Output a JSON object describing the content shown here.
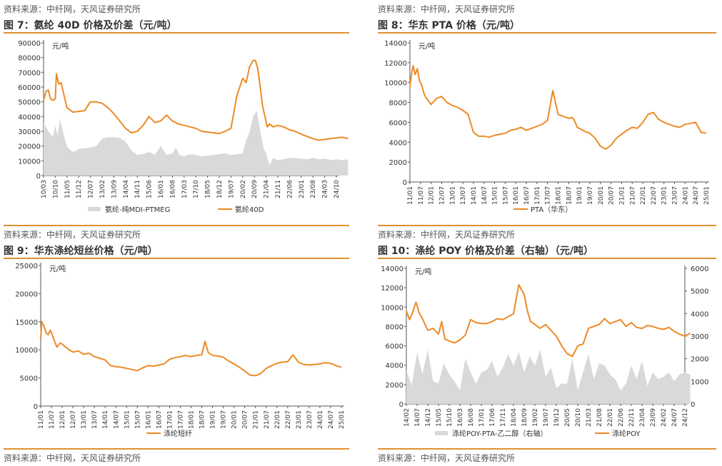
{
  "colors": {
    "accent": "#E0912F",
    "orange": "#ED8A27",
    "gray": "#D9D9D9"
  },
  "source_text": "资料来源：中纤网，天风证券研究所",
  "panels": [
    {
      "title": "图 7：氨纶 40D 价格及价差（元/吨）"
    },
    {
      "title": "图 8：华东 PTA 价格（元/吨）"
    },
    {
      "title": "图 9：华东涤纶短丝价格（元/吨）"
    },
    {
      "title": "图 10：涤纶 POY 价格及价差（右轴）（元/吨）"
    }
  ],
  "chart_data": [
    {
      "type": "line",
      "unit_label": "元/吨",
      "ylim": [
        0,
        90000
      ],
      "yticks": [
        0,
        10000,
        20000,
        30000,
        40000,
        50000,
        60000,
        70000,
        80000,
        90000
      ],
      "xticks": [
        "10/03",
        "10/10",
        "11/05",
        "11/12",
        "12/07",
        "13/02",
        "13/09",
        "14/04",
        "14/11",
        "15/06",
        "16/01",
        "16/08",
        "17/03",
        "17/10",
        "18/05",
        "18/12",
        "19/07",
        "20/02",
        "20/09",
        "21/04",
        "21/11",
        "22/06",
        "23/01",
        "23/08",
        "24/03",
        "24/10"
      ],
      "series": [
        {
          "name": "氨纶-纯MDI-PTMEG",
          "kind": "area",
          "color": "#D9D9D9",
          "x": [
            0,
            0.4,
            0.8,
            1,
            1.2,
            1.4,
            1.7,
            2,
            2.3,
            2.6,
            3,
            3.5,
            4,
            4.5,
            5,
            5.5,
            6,
            6.5,
            7,
            7.5,
            8,
            8.5,
            9,
            9.5,
            10,
            10.5,
            11,
            11.3,
            11.6,
            12,
            12.5,
            13,
            13.5,
            14,
            14.5,
            15,
            15.5,
            16,
            16.5,
            17,
            17.3,
            17.6,
            17.9,
            18.2,
            18.5,
            18.8,
            19,
            19.3,
            19.6,
            20,
            20.5,
            21,
            21.5,
            22,
            22.5,
            23,
            23.5,
            24,
            24.5,
            25,
            25.5,
            26
          ],
          "y": [
            36000,
            30000,
            26000,
            34000,
            27000,
            38000,
            28000,
            20000,
            17000,
            16000,
            18000,
            18500,
            19000,
            20000,
            25000,
            26000,
            26000,
            25500,
            23000,
            17000,
            14000,
            14500,
            16000,
            14000,
            20000,
            14000,
            15000,
            19000,
            14000,
            13000,
            14500,
            14000,
            13000,
            13500,
            14000,
            14500,
            15000,
            14000,
            14500,
            15000,
            24000,
            30000,
            40000,
            44000,
            30000,
            18000,
            15000,
            7000,
            12000,
            10500,
            11000,
            12000,
            12000,
            11500,
            11000,
            12000,
            11000,
            11500,
            10500,
            11000,
            10500,
            11000
          ]
        },
        {
          "name": "氨纶40D",
          "kind": "line",
          "color": "#ED8A27",
          "x": [
            0,
            0.2,
            0.4,
            0.6,
            0.8,
            1,
            1.1,
            1.3,
            1.5,
            1.7,
            2,
            2.5,
            3,
            3.5,
            4,
            4.5,
            5,
            5.5,
            6,
            6.5,
            7,
            7.5,
            8,
            8.5,
            9,
            9.5,
            10,
            10.5,
            11,
            11.5,
            12,
            12.5,
            13,
            13.5,
            14,
            14.5,
            15,
            15.5,
            16,
            16.5,
            17,
            17.3,
            17.6,
            17.9,
            18.1,
            18.3,
            18.5,
            18.7,
            18.9,
            19.1,
            19.3,
            19.6,
            20,
            20.5,
            21,
            21.5,
            22,
            22.5,
            23,
            23.5,
            24,
            24.5,
            25,
            25.5,
            26
          ],
          "y": [
            51000,
            57000,
            58000,
            52000,
            51000,
            52000,
            69000,
            62000,
            63000,
            56000,
            46000,
            43000,
            43500,
            44000,
            50000,
            50000,
            49000,
            46000,
            42000,
            37000,
            32000,
            29000,
            30000,
            34000,
            40000,
            36000,
            37000,
            41000,
            37000,
            35000,
            34000,
            33000,
            32000,
            30000,
            29500,
            29000,
            28500,
            30000,
            32000,
            54000,
            66000,
            63000,
            74000,
            78000,
            78000,
            72000,
            60000,
            47000,
            40000,
            33000,
            35000,
            33000,
            34000,
            33000,
            31000,
            30000,
            28000,
            26500,
            25000,
            24000,
            24500,
            25000,
            25500,
            26000,
            25000
          ]
        }
      ]
    },
    {
      "type": "line",
      "unit_label": "元/吨",
      "ylim": [
        0,
        14000
      ],
      "yticks": [
        0,
        2000,
        4000,
        6000,
        8000,
        10000,
        12000,
        14000
      ],
      "xticks": [
        "11/01",
        "11/07",
        "12/01",
        "12/07",
        "13/01",
        "13/07",
        "14/01",
        "14/07",
        "15/01",
        "15/07",
        "16/01",
        "16/07",
        "17/01",
        "17/07",
        "18/01",
        "18/07",
        "19/01",
        "19/07",
        "20/01",
        "20/07",
        "21/01",
        "21/07",
        "22/01",
        "22/07",
        "23/01",
        "23/07",
        "24/01",
        "24/07",
        "25/01"
      ],
      "series": [
        {
          "name": "PTA（华东）",
          "kind": "line",
          "color": "#ED8A27",
          "x": [
            0,
            0.1,
            0.3,
            0.5,
            0.7,
            0.9,
            1.1,
            1.3,
            1.5,
            1.7,
            2,
            2.5,
            3,
            3.5,
            4,
            4.5,
            5,
            5.5,
            6,
            6.5,
            7,
            7.5,
            8,
            8.5,
            9,
            9.5,
            10,
            10.5,
            11,
            11.5,
            12,
            12.5,
            13,
            13.5,
            14,
            14.5,
            15,
            15.3,
            15.5,
            15.8,
            16,
            16.5,
            17,
            17.5,
            18,
            18.5,
            19,
            19.5,
            20,
            20.5,
            21,
            21.5,
            22,
            22.5,
            23,
            23.5,
            24,
            24.5,
            25,
            25.5,
            26,
            26.5,
            27,
            27.5,
            28
          ],
          "y": [
            9500,
            10500,
            11700,
            10800,
            11400,
            10200,
            9800,
            9000,
            8500,
            8200,
            7800,
            8400,
            8600,
            8000,
            7700,
            7500,
            7200,
            6800,
            5000,
            4600,
            4600,
            4500,
            4700,
            4800,
            4900,
            5200,
            5300,
            5500,
            5200,
            5400,
            5600,
            5800,
            6200,
            9200,
            6800,
            6600,
            6400,
            6500,
            6300,
            5500,
            5400,
            5100,
            4900,
            4400,
            3600,
            3300,
            3700,
            4400,
            4800,
            5200,
            5500,
            5400,
            6000,
            6800,
            7000,
            6300,
            6000,
            5800,
            5600,
            5500,
            5800,
            5900,
            6000,
            5000,
            4900
          ]
        }
      ]
    },
    {
      "type": "line",
      "unit_label": "元/吨",
      "ylim": [
        0,
        25000
      ],
      "yticks": [
        0,
        5000,
        10000,
        15000,
        20000,
        25000
      ],
      "xticks": [
        "11/01",
        "11/07",
        "12/01",
        "12/07",
        "13/01",
        "13/07",
        "14/01",
        "14/07",
        "15/01",
        "15/07",
        "16/01",
        "16/07",
        "17/01",
        "17/07",
        "18/01",
        "18/07",
        "19/01",
        "19/07",
        "20/01",
        "20/07",
        "21/01",
        "21/07",
        "22/01",
        "22/07",
        "23/01",
        "23/07",
        "24/01",
        "24/07",
        "25/01"
      ],
      "series": [
        {
          "name": "涤纶短纤",
          "kind": "line",
          "color": "#ED8A27",
          "x": [
            0,
            0.1,
            0.3,
            0.5,
            0.7,
            0.9,
            1.2,
            1.5,
            1.8,
            2,
            2.5,
            3,
            3.5,
            4,
            4.5,
            5,
            5.5,
            6,
            6.5,
            7,
            7.5,
            8,
            8.5,
            9,
            9.5,
            10,
            10.5,
            11,
            11.5,
            12,
            12.5,
            13,
            13.5,
            14,
            14.5,
            15,
            15.3,
            15.6,
            16,
            16.5,
            17,
            17.5,
            18,
            18.5,
            19,
            19.5,
            20,
            20.5,
            21,
            21.5,
            22,
            22.5,
            23,
            23.5,
            24,
            24.5,
            25,
            25.5,
            26,
            26.5,
            27,
            27.5,
            28
          ],
          "y": [
            12000,
            15000,
            14200,
            13000,
            12700,
            13500,
            12000,
            10500,
            11200,
            11000,
            10200,
            9600,
            9800,
            9200,
            9400,
            8800,
            8500,
            8200,
            7200,
            7000,
            6900,
            6700,
            6500,
            6300,
            6800,
            7200,
            7100,
            7300,
            7500,
            8300,
            8600,
            8800,
            9000,
            8800,
            9000,
            9100,
            11500,
            9500,
            9000,
            8900,
            8700,
            8000,
            7500,
            6900,
            6200,
            5500,
            5400,
            5800,
            6700,
            7200,
            7600,
            7800,
            7900,
            9100,
            7800,
            7400,
            7300,
            7400,
            7500,
            7700,
            7600,
            7200,
            6900
          ]
        }
      ]
    },
    {
      "type": "line",
      "unit_label": "元/吨",
      "ylim": [
        0,
        14000
      ],
      "yticks": [
        0,
        2000,
        4000,
        6000,
        8000,
        10000,
        12000,
        14000
      ],
      "ylim_right": [
        0,
        6000
      ],
      "yticks_right": [
        0,
        1000,
        2000,
        3000,
        4000,
        5000,
        6000
      ],
      "xticks": [
        "14/02",
        "14/07",
        "14/12",
        "15/05",
        "15/10",
        "16/03",
        "16/08",
        "17/01",
        "17/06",
        "17/11",
        "18/04",
        "18/09",
        "19/02",
        "19/07",
        "19/12",
        "20/05",
        "20/10",
        "21/03",
        "21/08",
        "22/01",
        "22/06",
        "22/11",
        "23/04",
        "23/09",
        "24/02",
        "24/07",
        "24/12"
      ],
      "series": [
        {
          "name": "涤纶POY-PTA-乙二醇（右轴）",
          "kind": "area",
          "axis": "right",
          "color": "#D9D9D9",
          "x": [
            0,
            0.5,
            1,
            1.5,
            2,
            2.5,
            3,
            3.5,
            4,
            4.5,
            5,
            5.5,
            6,
            6.5,
            7,
            7.5,
            8,
            8.5,
            9,
            9.5,
            10,
            10.5,
            11,
            11.5,
            12,
            12.5,
            13,
            13.5,
            14,
            14.5,
            15,
            15.5,
            16,
            16.5,
            17,
            17.5,
            18,
            18.5,
            19,
            19.5,
            20,
            20.5,
            21,
            21.5,
            22,
            22.5,
            23,
            23.5,
            24,
            24.5,
            25,
            25.5,
            26,
            26.5
          ],
          "y": [
            1500,
            800,
            2300,
            1300,
            2400,
            1000,
            900,
            1800,
            1300,
            1000,
            600,
            2000,
            1400,
            900,
            1400,
            1500,
            1900,
            1200,
            1600,
            2200,
            1700,
            2300,
            1400,
            2100,
            1700,
            2400,
            1200,
            1600,
            700,
            900,
            900,
            2000,
            600,
            1400,
            2200,
            1100,
            1800,
            1700,
            1300,
            1100,
            600,
            900,
            1700,
            1100,
            1900,
            800,
            1400,
            1100,
            1200,
            1400,
            1000,
            1300,
            1400,
            1300
          ]
        },
        {
          "name": "涤纶POY",
          "kind": "line",
          "axis": "left",
          "color": "#ED8A27",
          "x": [
            0,
            0.3,
            0.6,
            0.9,
            1.2,
            1.5,
            2,
            2.5,
            3,
            3.3,
            3.6,
            4,
            4.5,
            5,
            5.5,
            6,
            6.5,
            7,
            7.5,
            8,
            8.5,
            9,
            9.5,
            10,
            10.5,
            11,
            11.3,
            11.6,
            12,
            12.5,
            13,
            13.5,
            14,
            14.5,
            15,
            15.5,
            16,
            16.5,
            17,
            17.5,
            18,
            18.5,
            19,
            19.5,
            20,
            20.5,
            21,
            21.5,
            22,
            22.5,
            23,
            23.5,
            24,
            24.5,
            25,
            25.5,
            26,
            26.5
          ],
          "y": [
            9600,
            8700,
            9500,
            10500,
            9400,
            8800,
            7600,
            7800,
            7200,
            8500,
            6700,
            6500,
            6300,
            6600,
            7100,
            8700,
            8400,
            8300,
            8300,
            8500,
            8800,
            8700,
            9000,
            9300,
            12300,
            11300,
            9600,
            8500,
            8200,
            7800,
            8200,
            7600,
            7000,
            6000,
            5200,
            4900,
            6000,
            6200,
            7800,
            8000,
            8200,
            8800,
            8300,
            8500,
            8700,
            8000,
            8400,
            7900,
            7800,
            8100,
            8000,
            7800,
            7700,
            7900,
            7500,
            7200,
            7000,
            7300
          ]
        }
      ]
    }
  ]
}
